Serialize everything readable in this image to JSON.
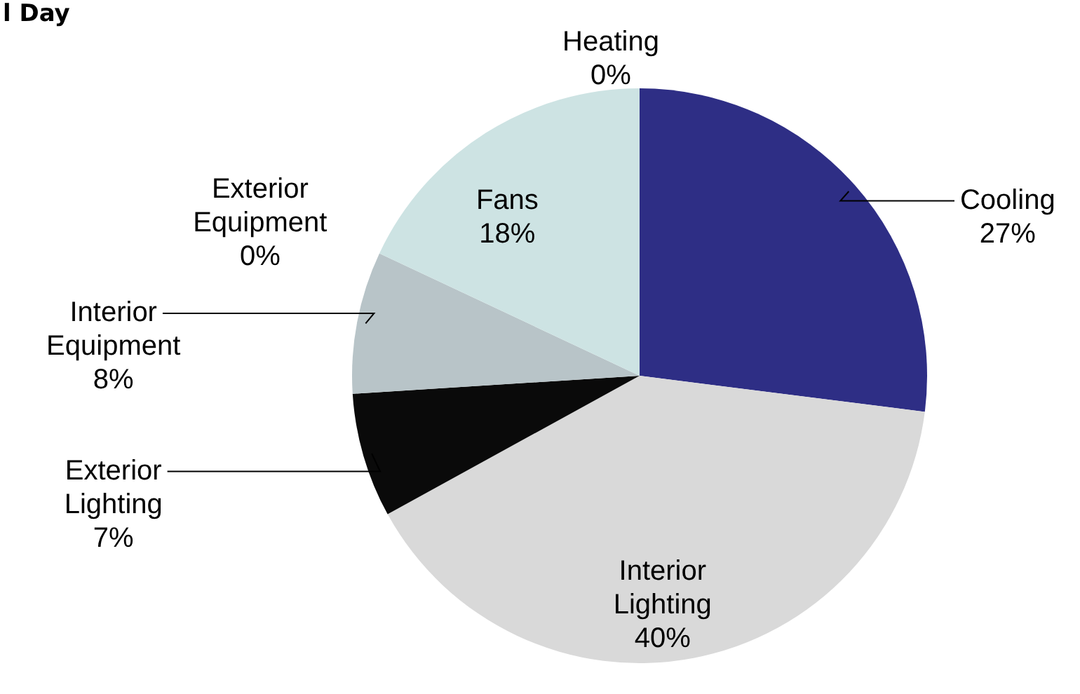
{
  "chart_data": {
    "type": "pie",
    "title": "l Day",
    "categories": [
      "Heating",
      "Cooling",
      "Interior Lighting",
      "Exterior Lighting",
      "Interior Equipment",
      "Exterior Equipment",
      "Fans"
    ],
    "values": [
      0,
      27,
      40,
      7,
      8,
      0,
      18
    ],
    "value_labels": [
      "0%",
      "27%",
      "40%",
      "7%",
      "8%",
      "0%",
      "18%"
    ],
    "colors": [
      "#c0504d",
      "#2e2e85",
      "#d9d9d9",
      "#0a0a0a",
      "#b8c4c8",
      "#9bbb59",
      "#cde3e3"
    ],
    "legend": false
  }
}
